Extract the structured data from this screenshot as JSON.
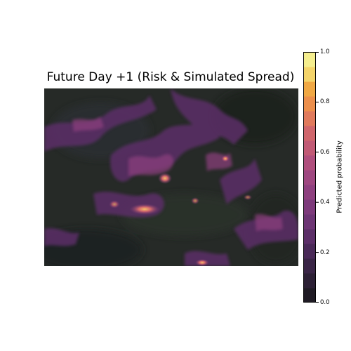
{
  "chart_data": {
    "type": "heatmap",
    "title": "Future Day +1 (Risk & Simulated Spread)",
    "colorbar": {
      "label": "Predicted probability",
      "range": [
        0.0,
        1.0
      ],
      "ticks": [
        "0.0",
        "0.2",
        "0.4",
        "0.6",
        "0.8",
        "1.0"
      ],
      "tick_values": [
        0.0,
        0.2,
        0.4,
        0.6,
        0.8,
        1.0
      ],
      "levels": 16,
      "colormap": [
        "#1f1b24",
        "#2c2035",
        "#3a2546",
        "#4a2a58",
        "#5c2f68",
        "#6d3574",
        "#7d3a7b",
        "#8e407f",
        "#9e4780",
        "#b04f7d",
        "#c15a75",
        "#d0666c",
        "#e07a5c",
        "#ec8f4c",
        "#f0a844",
        "#f4d46a",
        "#f5ee8e"
      ]
    },
    "axes": "off",
    "high_risk_hotspots": "orange-yellow clusters around lower-left center and scattered ridges"
  }
}
